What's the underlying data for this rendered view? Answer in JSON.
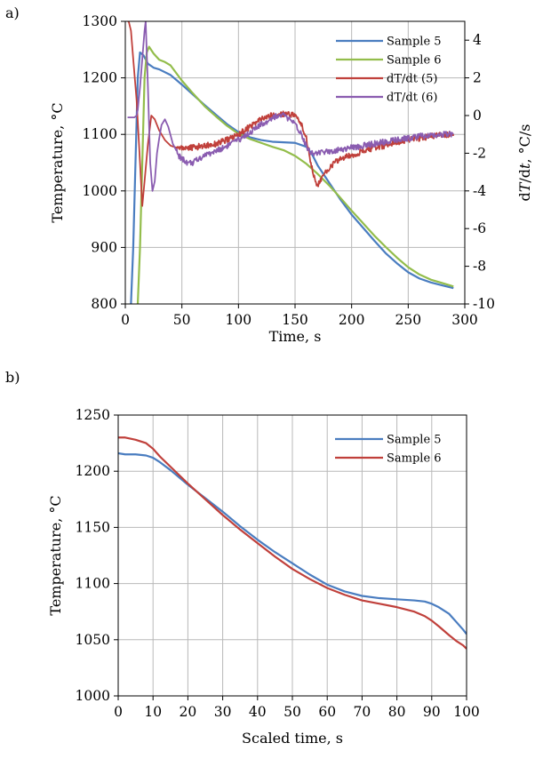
{
  "chart_data": [
    {
      "type": "line",
      "panel_label": "a)",
      "xlabel": "Time, s",
      "ylabel": "Temperature, °C",
      "y2label_pre": "d",
      "y2label_T": "T",
      "y2label_mid": "/d",
      "y2label_t": "t",
      "y2label_post": ", °C/s",
      "xlim": [
        0,
        300
      ],
      "ylim": [
        800,
        1300
      ],
      "y2lim": [
        -10,
        5
      ],
      "xticks": [
        0,
        50,
        100,
        150,
        200,
        250,
        300
      ],
      "yticks": [
        800,
        900,
        1000,
        1100,
        1200,
        1300
      ],
      "y2ticks": [
        -10,
        -8,
        -6,
        -4,
        -2,
        0,
        2,
        4
      ],
      "grid": true,
      "legend": "top-right",
      "series": [
        {
          "name": "Sample 5",
          "axis": "left",
          "color": "#4a7dc0",
          "x": [
            5,
            7,
            9,
            11,
            13,
            16,
            20,
            25,
            30,
            40,
            50,
            60,
            70,
            80,
            90,
            100,
            110,
            120,
            130,
            140,
            150,
            160,
            165,
            170,
            180,
            190,
            200,
            210,
            220,
            230,
            240,
            250,
            260,
            270,
            280,
            290
          ],
          "y": [
            800,
            900,
            1050,
            1200,
            1245,
            1240,
            1225,
            1218,
            1215,
            1205,
            1188,
            1170,
            1152,
            1135,
            1118,
            1104,
            1095,
            1090,
            1087,
            1086,
            1085,
            1078,
            1065,
            1045,
            1015,
            985,
            958,
            935,
            912,
            890,
            872,
            856,
            845,
            838,
            833,
            828
          ]
        },
        {
          "name": "Sample 6",
          "axis": "left",
          "color": "#93bd4b",
          "x": [
            11,
            13,
            15,
            17,
            19,
            21,
            25,
            30,
            35,
            40,
            50,
            60,
            70,
            80,
            90,
            100,
            110,
            120,
            130,
            140,
            150,
            160,
            170,
            180,
            190,
            200,
            210,
            220,
            230,
            240,
            250,
            260,
            270,
            280,
            290
          ],
          "y": [
            800,
            900,
            1050,
            1200,
            1245,
            1255,
            1243,
            1232,
            1228,
            1222,
            1195,
            1172,
            1150,
            1132,
            1115,
            1101,
            1092,
            1085,
            1078,
            1072,
            1062,
            1048,
            1030,
            1010,
            988,
            965,
            943,
            921,
            901,
            882,
            865,
            852,
            843,
            837,
            831
          ]
        },
        {
          "name": "dT/dt (5)",
          "axis": "right",
          "color": "#c0403b",
          "x": [
            2,
            3,
            5,
            7,
            10,
            13,
            15,
            17,
            20,
            23,
            26,
            30,
            35,
            40,
            45,
            50,
            55,
            60,
            70,
            80,
            90,
            100,
            110,
            120,
            130,
            140,
            145,
            150,
            155,
            160,
            163,
            166,
            168,
            170,
            172,
            175,
            180,
            185,
            190,
            200,
            210,
            220,
            230,
            240,
            250,
            260,
            270,
            280,
            290
          ],
          "y": [
            5,
            5,
            4.5,
            3,
            0.8,
            -2.5,
            -4.8,
            -3.5,
            -1.5,
            0,
            -0.2,
            -0.8,
            -1.3,
            -1.6,
            -1.7,
            -1.7,
            -1.7,
            -1.7,
            -1.6,
            -1.5,
            -1.3,
            -1.0,
            -0.6,
            -0.2,
            0,
            0.1,
            0.1,
            0,
            -0.4,
            -1.2,
            -2.2,
            -3.0,
            -3.6,
            -3.7,
            -3.5,
            -3.2,
            -2.8,
            -2.5,
            -2.3,
            -2.1,
            -1.9,
            -1.7,
            -1.6,
            -1.4,
            -1.3,
            -1.2,
            -1.1,
            -1.0,
            -1.0
          ]
        },
        {
          "name": "dT/dt (6)",
          "axis": "right",
          "color": "#8a5cb0",
          "x": [
            2,
            5,
            8,
            10,
            11,
            13,
            15,
            17,
            18,
            20,
            22,
            24,
            26,
            28,
            30,
            32,
            35,
            38,
            42,
            48,
            55,
            60,
            65,
            70,
            80,
            90,
            100,
            110,
            120,
            130,
            135,
            140,
            145,
            150,
            155,
            160,
            163,
            166,
            170,
            180,
            190,
            200,
            210,
            220,
            230,
            240,
            250,
            260,
            270,
            280,
            290
          ],
          "y": [
            -0.1,
            -0.1,
            -0.1,
            0,
            0.3,
            1.5,
            3,
            4.5,
            5,
            1.5,
            -2.5,
            -4,
            -3.5,
            -2,
            -1.2,
            -0.5,
            -0.2,
            -0.6,
            -1.5,
            -2.2,
            -2.5,
            -2.5,
            -2.3,
            -2.1,
            -1.9,
            -1.6,
            -1.3,
            -0.9,
            -0.5,
            -0.1,
            0,
            0,
            -0.2,
            -0.5,
            -0.9,
            -1.6,
            -1.9,
            -2.0,
            -2.0,
            -1.9,
            -1.8,
            -1.7,
            -1.6,
            -1.5,
            -1.4,
            -1.3,
            -1.2,
            -1.1,
            -1.05,
            -1.0,
            -1.0
          ]
        }
      ]
    },
    {
      "type": "line",
      "panel_label": "b)",
      "xlabel": "Scaled time, s",
      "ylabel": "Temperature, °C",
      "xlim": [
        0,
        100
      ],
      "ylim": [
        1000,
        1250
      ],
      "xticks": [
        0,
        10,
        20,
        30,
        40,
        50,
        60,
        70,
        80,
        90,
        100
      ],
      "yticks": [
        1000,
        1050,
        1100,
        1150,
        1200,
        1250
      ],
      "grid": true,
      "legend": "top-right",
      "series": [
        {
          "name": "Sample 5",
          "color": "#4a7dc0",
          "x": [
            0,
            2,
            5,
            8,
            10,
            12,
            15,
            20,
            25,
            30,
            35,
            40,
            45,
            50,
            55,
            60,
            65,
            70,
            75,
            80,
            85,
            88,
            90,
            92,
            95,
            97,
            99,
            100
          ],
          "y": [
            1216,
            1215,
            1215,
            1214,
            1212,
            1208,
            1201,
            1188,
            1176,
            1164,
            1151,
            1139,
            1128,
            1118,
            1108,
            1099,
            1093,
            1089,
            1087,
            1086,
            1085,
            1084,
            1082,
            1079,
            1073,
            1066,
            1059,
            1055
          ]
        },
        {
          "name": "Sample 6",
          "color": "#c0403b",
          "x": [
            0,
            2,
            5,
            8,
            10,
            12,
            15,
            20,
            25,
            30,
            35,
            40,
            45,
            50,
            55,
            60,
            65,
            70,
            75,
            80,
            85,
            88,
            90,
            92,
            95,
            97,
            99,
            100
          ],
          "y": [
            1230,
            1230,
            1228,
            1225,
            1220,
            1213,
            1204,
            1189,
            1175,
            1161,
            1148,
            1136,
            1124,
            1113,
            1104,
            1096,
            1090,
            1085,
            1082,
            1079,
            1075,
            1071,
            1067,
            1062,
            1054,
            1049,
            1045,
            1042
          ]
        }
      ]
    }
  ]
}
